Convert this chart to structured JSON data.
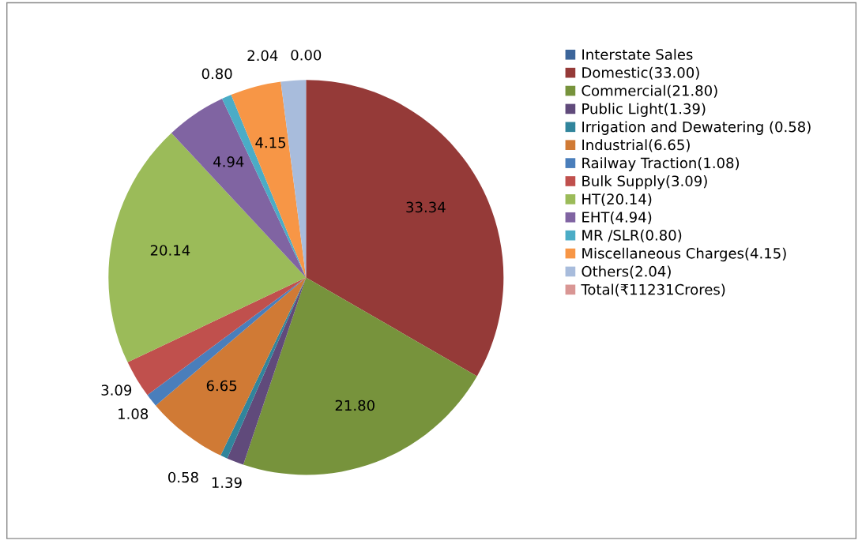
{
  "chart_data": {
    "type": "pie",
    "categories": [
      "Interstate Sales",
      "Domestic(33.00)",
      "Commercial(21.80)",
      "Public Light(1.39)",
      "Irrigation and Dewatering (0.58)",
      "Industrial(6.65)",
      "Railway Traction(1.08)",
      "Bulk Supply(3.09)",
      "HT(20.14)",
      "EHT(4.94)",
      "MR /SLR(0.80)",
      "Miscellaneous Charges(4.15)",
      "Others(2.04)",
      "Total(₹11231Crores)"
    ],
    "values": [
      0.0,
      33.34,
      21.8,
      1.39,
      0.58,
      6.65,
      1.08,
      3.09,
      20.14,
      4.94,
      0.8,
      4.15,
      2.04,
      0
    ],
    "value_labels": [
      "0.00",
      "33.34",
      "21.80",
      "1.39",
      "0.58",
      "6.65",
      "1.08",
      "3.09",
      "20.14",
      "4.94",
      "0.80",
      "4.15",
      "2.04",
      null
    ],
    "colors": [
      "#3c659a",
      "#953a38",
      "#77933c",
      "#604a7b",
      "#31859c",
      "#d07a35",
      "#4a7ebb",
      "#c0504d",
      "#9bbb59",
      "#8064a2",
      "#4bacc6",
      "#f79646",
      "#a8bcdc",
      "#d99694"
    ],
    "legend": "right"
  }
}
